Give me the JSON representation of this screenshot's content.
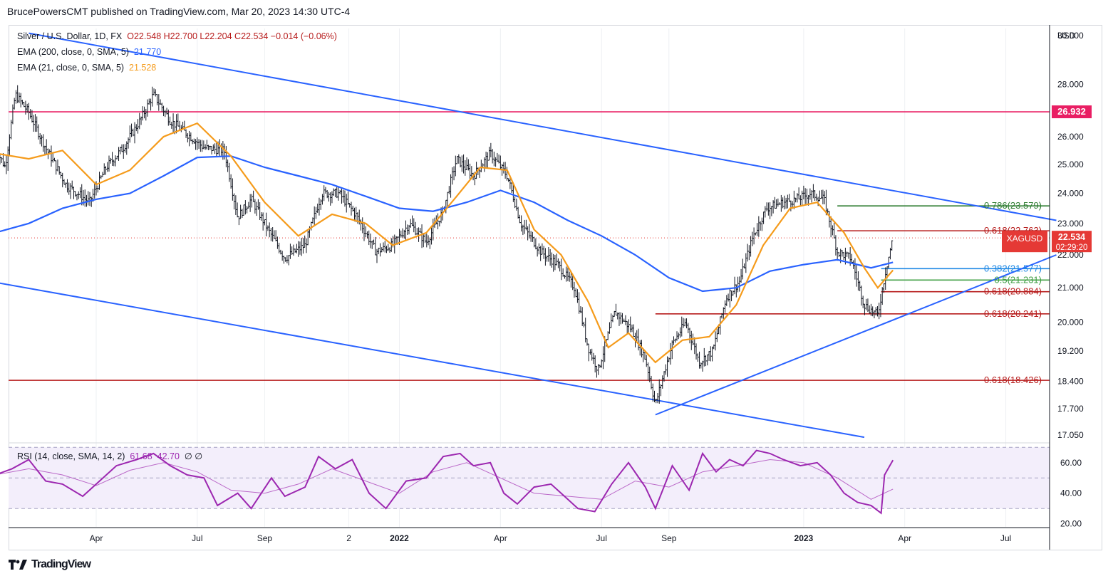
{
  "header": {
    "publisher": "BrucePowersCMT published on TradingView.com, Mar 20, 2023 14:30 UTC-4"
  },
  "legend": {
    "symbol_line": "Silver / U.S. Dollar, 1D, FX",
    "ohlc": "O22.548  H22.700  L22.204  C22.534  −0.014 (−0.06%)",
    "ema200_label": "EMA (200, close, 0, SMA, 5)",
    "ema200_value": "21.770",
    "ema21_label": "EMA (21, close, 0, SMA, 5)",
    "ema21_value": "21.528",
    "rsi_label": "RSI (14, close, SMA, 14, 2)",
    "rsi_value": "61.68",
    "rsi_ma_value": "42.70",
    "rsi_extra": "∅  ∅"
  },
  "footer": {
    "brand": "TradingView"
  },
  "chart_data": [
    {
      "type": "candlestick",
      "title": "Silver / U.S. Dollar, 1D, FX",
      "currency": "USD",
      "y_axis_scale": "log",
      "ylim": [
        16.9,
        30.3
      ],
      "y_ticks": [
        30.0,
        28.0,
        26.0,
        25.0,
        24.0,
        23.0,
        22.0,
        21.0,
        20.0,
        19.2,
        18.4,
        17.7,
        17.05
      ],
      "y_tick_labels": [
        "30.000",
        "28.000",
        "26.000",
        "25.000",
        "24.000",
        "23.000",
        "22.000",
        "21.000",
        "20.000",
        "19.200",
        "18.400",
        "17.700",
        "17.050"
      ],
      "x_labels": [
        "Apr",
        "Jul",
        "Sep",
        "2",
        "2022",
        "Apr",
        "Jul",
        "Sep",
        "2023",
        "Apr",
        "Jul"
      ],
      "x_label_months": [
        3,
        6,
        8,
        10.5,
        12,
        15,
        18,
        20,
        24,
        27,
        30
      ],
      "price_path": [
        [
          0,
          25.6
        ],
        [
          0.3,
          24.9
        ],
        [
          0.6,
          27.6
        ],
        [
          1.0,
          26.9
        ],
        [
          1.5,
          25.6
        ],
        [
          2.1,
          24.3
        ],
        [
          2.8,
          23.7
        ],
        [
          3.3,
          24.9
        ],
        [
          3.8,
          25.6
        ],
        [
          4.3,
          26.6
        ],
        [
          4.7,
          27.6
        ],
        [
          5.2,
          26.6
        ],
        [
          5.7,
          26.1
        ],
        [
          6.2,
          25.6
        ],
        [
          6.8,
          25.5
        ],
        [
          7.2,
          23.2
        ],
        [
          7.6,
          23.8
        ],
        [
          8.1,
          22.8
        ],
        [
          8.6,
          21.9
        ],
        [
          9.2,
          22.3
        ],
        [
          9.7,
          24.0
        ],
        [
          10.2,
          24.0
        ],
        [
          10.7,
          23.3
        ],
        [
          11.3,
          22.1
        ],
        [
          11.8,
          22.3
        ],
        [
          12.3,
          23.0
        ],
        [
          12.8,
          22.4
        ],
        [
          13.3,
          23.4
        ],
        [
          13.7,
          25.2
        ],
        [
          14.2,
          24.6
        ],
        [
          14.7,
          25.4
        ],
        [
          15.2,
          24.6
        ],
        [
          15.6,
          23.0
        ],
        [
          16.2,
          22.1
        ],
        [
          16.7,
          21.7
        ],
        [
          17.2,
          21.0
        ],
        [
          17.6,
          19.3
        ],
        [
          17.9,
          18.7
        ],
        [
          18.4,
          20.3
        ],
        [
          18.9,
          19.8
        ],
        [
          19.3,
          19.0
        ],
        [
          19.6,
          17.8
        ],
        [
          20.1,
          19.4
        ],
        [
          20.5,
          20.0
        ],
        [
          20.9,
          18.9
        ],
        [
          21.3,
          19.2
        ],
        [
          21.7,
          20.7
        ],
        [
          22.1,
          21.2
        ],
        [
          22.5,
          22.6
        ],
        [
          22.9,
          23.5
        ],
        [
          23.4,
          23.7
        ],
        [
          23.8,
          23.8
        ],
        [
          24.2,
          24.0
        ],
        [
          24.6,
          23.8
        ],
        [
          25.0,
          22.1
        ],
        [
          25.4,
          21.9
        ],
        [
          25.8,
          20.5
        ],
        [
          26.2,
          20.2
        ],
        [
          26.45,
          21.6
        ],
        [
          26.65,
          22.53
        ]
      ],
      "ema200_path": [
        [
          0,
          22.7
        ],
        [
          1,
          23.0
        ],
        [
          2,
          23.5
        ],
        [
          3,
          23.8
        ],
        [
          4,
          24.0
        ],
        [
          5,
          24.6
        ],
        [
          6,
          25.25
        ],
        [
          7,
          25.3
        ],
        [
          8,
          24.9
        ],
        [
          9,
          24.6
        ],
        [
          10,
          24.3
        ],
        [
          11,
          23.9
        ],
        [
          12,
          23.5
        ],
        [
          13,
          23.4
        ],
        [
          14,
          23.7
        ],
        [
          15,
          24.1
        ],
        [
          16,
          23.7
        ],
        [
          17,
          23.1
        ],
        [
          18,
          22.6
        ],
        [
          19,
          22.0
        ],
        [
          20,
          21.3
        ],
        [
          21,
          20.9
        ],
        [
          22,
          21.0
        ],
        [
          23,
          21.5
        ],
        [
          24,
          21.7
        ],
        [
          25,
          21.85
        ],
        [
          26,
          21.6
        ],
        [
          26.65,
          21.77
        ]
      ],
      "ema21_path": [
        [
          0,
          25.4
        ],
        [
          1,
          25.2
        ],
        [
          2,
          25.5
        ],
        [
          3,
          24.3
        ],
        [
          4,
          24.8
        ],
        [
          5,
          26.0
        ],
        [
          6,
          26.5
        ],
        [
          7,
          25.3
        ],
        [
          8,
          23.7
        ],
        [
          9,
          22.6
        ],
        [
          10,
          23.3
        ],
        [
          11,
          23.0
        ],
        [
          11.8,
          22.3
        ],
        [
          12.8,
          22.7
        ],
        [
          13.7,
          23.9
        ],
        [
          14.4,
          24.9
        ],
        [
          15.2,
          24.8
        ],
        [
          16,
          22.8
        ],
        [
          16.8,
          22.0
        ],
        [
          17.6,
          20.6
        ],
        [
          18.2,
          19.3
        ],
        [
          18.8,
          19.7
        ],
        [
          19.6,
          18.9
        ],
        [
          20.4,
          19.5
        ],
        [
          21.2,
          19.6
        ],
        [
          22,
          20.5
        ],
        [
          22.8,
          22.3
        ],
        [
          23.6,
          23.5
        ],
        [
          24.4,
          23.7
        ],
        [
          25.2,
          22.7
        ],
        [
          25.8,
          21.6
        ],
        [
          26.2,
          21.0
        ],
        [
          26.65,
          21.53
        ]
      ],
      "horizontal_levels": [
        {
          "value": 26.932,
          "label": "26.932",
          "color": "#e91e63",
          "start_month": -0.2
        },
        {
          "value": 18.426,
          "label": "0.618(18.426)",
          "color": "#b71c1c",
          "start_month": -0.2
        },
        {
          "value": 23.579,
          "label": "0.786(23.579)",
          "color": "#2e7d32",
          "start_month": 25.0
        },
        {
          "value": 22.763,
          "label": "0.618(22.763)",
          "color": "#b71c1c",
          "start_month": 25.0
        },
        {
          "value": 21.577,
          "label": "0.382(21.577)",
          "color": "#1e88e5",
          "start_month": 26.3
        },
        {
          "value": 21.231,
          "label": "0.5(21.231)",
          "color": "#43a047",
          "start_month": 26.3
        },
        {
          "value": 20.884,
          "label": "0.618(20.884)",
          "color": "#b71c1c",
          "start_month": 26.3
        },
        {
          "value": 20.241,
          "label": "0.618(20.241)",
          "color": "#b71c1c",
          "start_month": 19.6
        }
      ],
      "trend_lines": [
        {
          "from": [
            1.0,
            30.1
          ],
          "to": [
            31.5,
            23.1
          ],
          "color": "#2962ff"
        },
        {
          "from": [
            -0.2,
            21.2
          ],
          "to": [
            25.8,
            17.0
          ],
          "color": "#2962ff"
        },
        {
          "from": [
            19.6,
            17.55
          ],
          "to": [
            31.5,
            22.0
          ],
          "color": "#2962ff"
        }
      ],
      "last_price": "22.534",
      "last_price_symbol": "XAGUSD",
      "countdown": "02:29:20",
      "colors": {
        "candle": "#131722",
        "ema200": "#2962ff",
        "ema21": "#f59b1b",
        "last_price_bg": "#e53935"
      }
    },
    {
      "type": "line",
      "title": "RSI (14, close, SMA, 14, 2)",
      "ylim": [
        18,
        72
      ],
      "y_ticks": [
        60.0,
        40.0,
        20.0
      ],
      "y_tick_labels": [
        "60.00",
        "40.00",
        "20.00"
      ],
      "band": [
        30,
        70
      ],
      "middle": 50,
      "rsi_path": [
        [
          0,
          52
        ],
        [
          0.5,
          56
        ],
        [
          1.0,
          62
        ],
        [
          1.5,
          48
        ],
        [
          2.0,
          46
        ],
        [
          2.6,
          38
        ],
        [
          3.0,
          46
        ],
        [
          3.6,
          58
        ],
        [
          4.2,
          62
        ],
        [
          4.7,
          66
        ],
        [
          5.2,
          58
        ],
        [
          5.7,
          52
        ],
        [
          6.2,
          50
        ],
        [
          6.6,
          32
        ],
        [
          7.2,
          40
        ],
        [
          7.6,
          30
        ],
        [
          8.2,
          50
        ],
        [
          8.6,
          38
        ],
        [
          9.2,
          44
        ],
        [
          9.6,
          64
        ],
        [
          10.1,
          56
        ],
        [
          10.6,
          62
        ],
        [
          11.1,
          40
        ],
        [
          11.6,
          30
        ],
        [
          12.2,
          48
        ],
        [
          12.8,
          50
        ],
        [
          13.3,
          64
        ],
        [
          13.8,
          66
        ],
        [
          14.2,
          58
        ],
        [
          14.7,
          60
        ],
        [
          15.1,
          40
        ],
        [
          15.5,
          33
        ],
        [
          16.0,
          44
        ],
        [
          16.5,
          46
        ],
        [
          16.9,
          38
        ],
        [
          17.3,
          30
        ],
        [
          17.8,
          28
        ],
        [
          18.3,
          46
        ],
        [
          18.8,
          60
        ],
        [
          19.3,
          44
        ],
        [
          19.6,
          30
        ],
        [
          20.1,
          58
        ],
        [
          20.6,
          42
        ],
        [
          21.0,
          66
        ],
        [
          21.4,
          54
        ],
        [
          21.8,
          62
        ],
        [
          22.2,
          58
        ],
        [
          22.6,
          68
        ],
        [
          23.0,
          66
        ],
        [
          23.4,
          62
        ],
        [
          23.9,
          58
        ],
        [
          24.4,
          60
        ],
        [
          24.8,
          52
        ],
        [
          25.2,
          40
        ],
        [
          25.6,
          34
        ],
        [
          26.0,
          32
        ],
        [
          26.3,
          27
        ],
        [
          26.4,
          52
        ],
        [
          26.65,
          61.68
        ]
      ],
      "rsi_ma_path": [
        [
          0,
          52
        ],
        [
          1,
          56
        ],
        [
          2,
          52
        ],
        [
          3,
          45
        ],
        [
          4,
          55
        ],
        [
          5,
          60
        ],
        [
          6,
          54
        ],
        [
          7,
          42
        ],
        [
          8,
          40
        ],
        [
          9,
          46
        ],
        [
          10,
          56
        ],
        [
          11,
          48
        ],
        [
          12,
          40
        ],
        [
          13,
          54
        ],
        [
          14,
          60
        ],
        [
          15,
          50
        ],
        [
          16,
          40
        ],
        [
          17,
          38
        ],
        [
          18,
          36
        ],
        [
          19,
          48
        ],
        [
          20,
          44
        ],
        [
          21,
          54
        ],
        [
          22,
          58
        ],
        [
          23,
          62
        ],
        [
          24,
          60
        ],
        [
          25,
          50
        ],
        [
          26,
          36
        ],
        [
          26.65,
          42.7
        ]
      ],
      "colors": {
        "rsi": "#9c27b0",
        "rsi_ma": "#ba68c8",
        "band_fill": "#f3eefb"
      }
    }
  ]
}
